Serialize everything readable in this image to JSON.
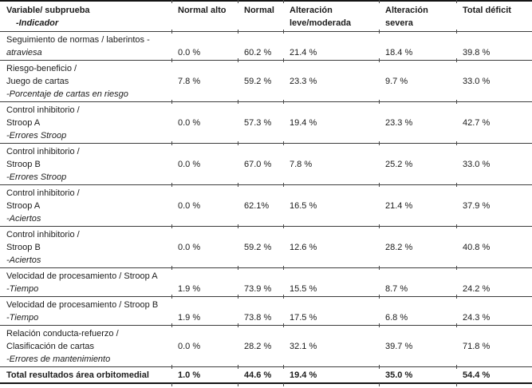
{
  "table": {
    "header": {
      "variable_col_lines": [
        {
          "text": "Variable/ subprueba",
          "italic": false,
          "indent": false
        },
        {
          "text": "-Indicador",
          "italic": true,
          "indent": true
        }
      ],
      "value_columns": [
        {
          "lines": [
            "Normal alto"
          ]
        },
        {
          "lines": [
            "Normal"
          ]
        },
        {
          "lines": [
            "Alteración",
            "leve/moderada"
          ]
        },
        {
          "lines": [
            "Alteración",
            "severa"
          ]
        },
        {
          "lines": [
            "Total déficit"
          ]
        }
      ]
    },
    "rows": [
      {
        "label_lines": [
          {
            "text": "Seguimiento de normas / laberintos -",
            "italic": false
          },
          {
            "text": "atraviesa",
            "italic": true
          }
        ],
        "value_line": 1,
        "values": [
          "0.0 %",
          "60.2 %",
          "21.4 %",
          "18.4 %",
          "39.8 %"
        ],
        "bold": false
      },
      {
        "label_lines": [
          {
            "text": "Riesgo-beneficio /",
            "italic": false
          },
          {
            "text": "Juego de cartas",
            "italic": false
          },
          {
            "text": "-Porcentaje de cartas en riesgo",
            "italic": true
          }
        ],
        "value_line": 1,
        "values": [
          "7.8 %",
          "59.2 %",
          "23.3 %",
          "9.7 %",
          "33.0 %"
        ],
        "bold": false
      },
      {
        "label_lines": [
          {
            "text": "Control inhibitorio /",
            "italic": false
          },
          {
            "text": "Stroop A",
            "italic": false
          },
          {
            "text": "-Errores Stroop",
            "italic": true
          }
        ],
        "value_line": 1,
        "values": [
          "0.0 %",
          "57.3 %",
          "19.4 %",
          "23.3 %",
          "42.7 %"
        ],
        "bold": false
      },
      {
        "label_lines": [
          {
            "text": "Control inhibitorio /",
            "italic": false
          },
          {
            "text": "Stroop B",
            "italic": false
          },
          {
            "text": "-Errores Stroop",
            "italic": true
          }
        ],
        "value_line": 1,
        "values": [
          "0.0 %",
          "67.0 %",
          "7.8 %",
          "25.2 %",
          "33.0 %"
        ],
        "bold": false
      },
      {
        "label_lines": [
          {
            "text": "Control inhibitorio /",
            "italic": false
          },
          {
            "text": "Stroop A",
            "italic": false
          },
          {
            "text": "-Aciertos",
            "italic": true
          }
        ],
        "value_line": 1,
        "values": [
          "0.0 %",
          "62.1%",
          "16.5 %",
          "21.4 %",
          "37.9 %"
        ],
        "bold": false
      },
      {
        "label_lines": [
          {
            "text": "Control inhibitorio /",
            "italic": false
          },
          {
            "text": "Stroop B",
            "italic": false
          },
          {
            "text": "-Aciertos",
            "italic": true
          }
        ],
        "value_line": 1,
        "values": [
          "0.0 %",
          "59.2 %",
          "12.6 %",
          "28.2 %",
          "40.8 %"
        ],
        "bold": false
      },
      {
        "label_lines": [
          {
            "text": "Velocidad de procesamiento / Stroop A",
            "italic": false
          },
          {
            "text": "-Tiempo",
            "italic": true
          }
        ],
        "value_line": 1,
        "values": [
          "1.9 %",
          "73.9 %",
          "15.5 %",
          "8.7 %",
          "24.2 %"
        ],
        "bold": false
      },
      {
        "label_lines": [
          {
            "text": "Velocidad de procesamiento / Stroop B",
            "italic": false
          },
          {
            "text": "-Tiempo",
            "italic": true
          }
        ],
        "value_line": 1,
        "values": [
          "1.9 %",
          "73.8 %",
          "17.5 %",
          "6.8 %",
          "24.3 %"
        ],
        "bold": false
      },
      {
        "label_lines": [
          {
            "text": "Relación conducta-refuerzo /",
            "italic": false
          },
          {
            "text": "Clasificación de cartas",
            "italic": false
          },
          {
            "text": "-Errores de mantenimiento",
            "italic": true
          }
        ],
        "value_line": 1,
        "values": [
          "0.0 %",
          "28.2 %",
          "32.1 %",
          "39.7 %",
          "71.8 %"
        ],
        "bold": false
      },
      {
        "label_lines": [
          {
            "text": "Total resultados área orbitomedial",
            "italic": false
          }
        ],
        "value_line": 0,
        "values": [
          "1.0 %",
          "44.6 %",
          "19.4 %",
          "35.0 %",
          "54.4 %"
        ],
        "bold": true
      }
    ],
    "colors": {
      "text": "#1c1c1c",
      "outer_border": "#141414",
      "inner_rule": "#3d3d3d",
      "tick": "#4a4a4a",
      "background": "#ffffff"
    }
  }
}
